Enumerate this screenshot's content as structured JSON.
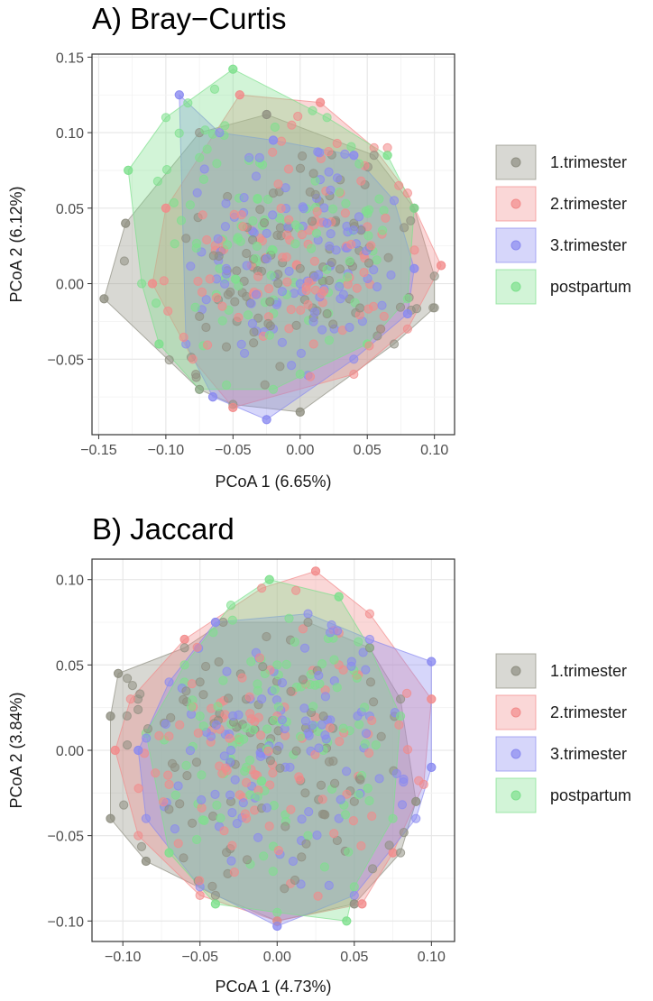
{
  "colors": {
    "1.trimester": "#8f8f82",
    "2.trimester": "#f28b8b",
    "3.trimester": "#8a8af0",
    "postpartum": "#7de08d"
  },
  "chart_data": [
    {
      "type": "scatter",
      "title": "A) Bray−Curtis",
      "xlabel": "PCoA 1 (6.65%)",
      "ylabel": "PCoA 2 (6.12%)",
      "xlim": [
        -0.155,
        0.115
      ],
      "ylim": [
        -0.1,
        0.152
      ],
      "xticks": [
        -0.15,
        -0.1,
        -0.05,
        0.0,
        0.05,
        0.1
      ],
      "xtick_labels": [
        "−0.15",
        "−0.10",
        "−0.05",
        "0.00",
        "0.05",
        "0.10"
      ],
      "yticks": [
        -0.05,
        0.0,
        0.05,
        0.1,
        0.15
      ],
      "ytick_labels": [
        "−0.05",
        "0.00",
        "0.05",
        "0.10",
        "0.15"
      ],
      "grid": true,
      "legend_position": "right",
      "series": [
        {
          "name": "1.trimester",
          "hull": [
            [
              -0.146,
              -0.01
            ],
            [
              -0.13,
              0.04
            ],
            [
              -0.075,
              0.1
            ],
            [
              -0.025,
              0.112
            ],
            [
              0.055,
              0.085
            ],
            [
              0.085,
              0.05
            ],
            [
              0.1,
              0.005
            ],
            [
              0.1,
              -0.016
            ],
            [
              0.07,
              -0.04
            ],
            [
              0.0,
              -0.085
            ],
            [
              -0.05,
              -0.08
            ],
            [
              -0.075,
              -0.07
            ]
          ],
          "points": [
            [
              -0.146,
              -0.01
            ],
            [
              -0.13,
              0.04
            ],
            [
              -0.085,
              0.03
            ],
            [
              -0.04,
              0.02
            ],
            [
              -0.02,
              0.06
            ],
            [
              0.0,
              0.01
            ],
            [
              0.02,
              -0.02
            ],
            [
              0.04,
              0.04
            ],
            [
              0.06,
              -0.03
            ],
            [
              0.099,
              -0.016
            ],
            [
              0.0,
              -0.085
            ],
            [
              -0.025,
              0.112
            ]
          ]
        },
        {
          "name": "2.trimester",
          "hull": [
            [
              -0.11,
              0.0
            ],
            [
              -0.1,
              0.05
            ],
            [
              -0.045,
              0.125
            ],
            [
              0.015,
              0.12
            ],
            [
              0.055,
              0.09
            ],
            [
              0.08,
              0.06
            ],
            [
              0.105,
              0.012
            ],
            [
              0.08,
              -0.03
            ],
            [
              0.04,
              -0.06
            ],
            [
              -0.05,
              -0.082
            ],
            [
              -0.08,
              -0.05
            ]
          ],
          "points": [
            [
              -0.11,
              0.0
            ],
            [
              -0.1,
              0.05
            ],
            [
              -0.045,
              0.125
            ],
            [
              0.015,
              0.12
            ],
            [
              0.065,
              0.09
            ],
            [
              0.105,
              0.012
            ],
            [
              0.06,
              -0.03
            ],
            [
              -0.05,
              -0.082
            ],
            [
              -0.03,
              0.03
            ],
            [
              0.01,
              -0.04
            ],
            [
              0.03,
              0.06
            ]
          ]
        },
        {
          "name": "3.trimester",
          "hull": [
            [
              -0.09,
              0.125
            ],
            [
              -0.06,
              0.1
            ],
            [
              -0.02,
              0.095
            ],
            [
              0.04,
              0.085
            ],
            [
              0.07,
              0.055
            ],
            [
              0.085,
              0.01
            ],
            [
              0.08,
              -0.02
            ],
            [
              0.04,
              -0.05
            ],
            [
              -0.025,
              -0.09
            ],
            [
              -0.065,
              -0.075
            ],
            [
              -0.085,
              -0.04
            ]
          ],
          "points": [
            [
              -0.09,
              0.125
            ],
            [
              -0.02,
              0.095
            ],
            [
              0.04,
              0.085
            ],
            [
              0.085,
              0.01
            ],
            [
              0.08,
              -0.02
            ],
            [
              -0.025,
              -0.09
            ],
            [
              -0.065,
              -0.075
            ],
            [
              0.0,
              0.0
            ],
            [
              0.03,
              -0.01
            ],
            [
              -0.02,
              -0.03
            ],
            [
              0.02,
              0.04
            ]
          ]
        },
        {
          "name": "postpartum",
          "hull": [
            [
              -0.128,
              0.075
            ],
            [
              -0.1,
              0.11
            ],
            [
              -0.05,
              0.142
            ],
            [
              0.02,
              0.11
            ],
            [
              0.065,
              0.085
            ],
            [
              0.085,
              0.05
            ],
            [
              0.08,
              -0.01
            ],
            [
              0.05,
              -0.04
            ],
            [
              -0.02,
              -0.07
            ],
            [
              -0.075,
              -0.07
            ],
            [
              -0.105,
              -0.04
            ],
            [
              -0.118,
              0.0
            ]
          ],
          "points": [
            [
              -0.128,
              0.075
            ],
            [
              -0.05,
              0.142
            ],
            [
              0.065,
              0.085
            ],
            [
              0.085,
              0.05
            ],
            [
              -0.105,
              -0.04
            ],
            [
              -0.06,
              0.01
            ],
            [
              -0.01,
              0.04
            ],
            [
              0.03,
              0.0
            ],
            [
              0.05,
              -0.04
            ],
            [
              0.0,
              -0.06
            ],
            [
              -0.03,
              0.08
            ]
          ]
        }
      ]
    },
    {
      "type": "scatter",
      "title": "B) Jaccard",
      "xlabel": "PCoA 1 (4.73%)",
      "ylabel": "PCoA 2 (3.84%)",
      "xlim": [
        -0.12,
        0.115
      ],
      "ylim": [
        -0.112,
        0.112
      ],
      "xticks": [
        -0.1,
        -0.05,
        0.0,
        0.05,
        0.1
      ],
      "xtick_labels": [
        "−0.10",
        "−0.05",
        "0.00",
        "0.05",
        "0.10"
      ],
      "yticks": [
        -0.1,
        -0.05,
        0.0,
        0.05,
        0.1
      ],
      "ytick_labels": [
        "−0.10",
        "−0.05",
        "0.00",
        "0.05",
        "0.10"
      ],
      "grid": true,
      "legend_position": "right",
      "series": [
        {
          "name": "1.trimester",
          "hull": [
            [
              -0.108,
              0.02
            ],
            [
              -0.103,
              0.045
            ],
            [
              -0.06,
              0.06
            ],
            [
              -0.035,
              0.075
            ],
            [
              0.02,
              0.075
            ],
            [
              0.06,
              0.06
            ],
            [
              0.08,
              0.03
            ],
            [
              0.09,
              -0.03
            ],
            [
              0.08,
              -0.06
            ],
            [
              0.05,
              -0.09
            ],
            [
              0.0,
              -0.1
            ],
            [
              -0.04,
              -0.085
            ],
            [
              -0.085,
              -0.065
            ],
            [
              -0.108,
              -0.04
            ]
          ],
          "points": [
            [
              -0.108,
              0.02
            ],
            [
              -0.103,
              0.045
            ],
            [
              -0.108,
              -0.04
            ],
            [
              -0.085,
              -0.065
            ],
            [
              0.0,
              0.0
            ],
            [
              0.03,
              0.02
            ],
            [
              -0.03,
              -0.03
            ],
            [
              0.05,
              -0.03
            ],
            [
              -0.05,
              0.04
            ],
            [
              0.09,
              -0.03
            ],
            [
              0.05,
              -0.09
            ]
          ]
        },
        {
          "name": "2.trimester",
          "hull": [
            [
              -0.105,
              0.0
            ],
            [
              -0.095,
              0.03
            ],
            [
              -0.06,
              0.065
            ],
            [
              -0.01,
              0.095
            ],
            [
              0.025,
              0.105
            ],
            [
              0.06,
              0.08
            ],
            [
              0.1,
              0.03
            ],
            [
              0.095,
              -0.02
            ],
            [
              0.075,
              -0.06
            ],
            [
              0.055,
              -0.09
            ],
            [
              0.0,
              -0.1
            ],
            [
              -0.05,
              -0.085
            ],
            [
              -0.09,
              -0.05
            ]
          ],
          "points": [
            [
              -0.105,
              0.0
            ],
            [
              -0.06,
              0.065
            ],
            [
              0.025,
              0.105
            ],
            [
              0.1,
              0.03
            ],
            [
              0.075,
              -0.06
            ],
            [
              0.055,
              -0.09
            ],
            [
              0.0,
              0.02
            ],
            [
              -0.02,
              -0.04
            ],
            [
              0.04,
              0.05
            ],
            [
              -0.07,
              -0.02
            ]
          ]
        },
        {
          "name": "3.trimester",
          "hull": [
            [
              -0.09,
              0.0
            ],
            [
              -0.07,
              0.04
            ],
            [
              -0.04,
              0.075
            ],
            [
              0.02,
              0.08
            ],
            [
              0.06,
              0.065
            ],
            [
              0.1,
              0.052
            ],
            [
              0.1,
              -0.01
            ],
            [
              0.09,
              -0.04
            ],
            [
              0.05,
              -0.085
            ],
            [
              0.0,
              -0.103
            ],
            [
              -0.05,
              -0.08
            ],
            [
              -0.085,
              -0.04
            ]
          ],
          "points": [
            [
              -0.09,
              0.0
            ],
            [
              -0.04,
              0.075
            ],
            [
              0.1,
              0.052
            ],
            [
              0.1,
              -0.01
            ],
            [
              0.0,
              -0.103
            ],
            [
              0.02,
              0.01
            ],
            [
              -0.03,
              0.0
            ],
            [
              0.04,
              -0.04
            ],
            [
              -0.01,
              0.03
            ],
            [
              0.06,
              0.02
            ]
          ]
        },
        {
          "name": "postpartum",
          "hull": [
            [
              -0.085,
              0.01
            ],
            [
              -0.06,
              0.05
            ],
            [
              -0.03,
              0.085
            ],
            [
              -0.005,
              0.1
            ],
            [
              0.04,
              0.09
            ],
            [
              0.06,
              0.06
            ],
            [
              0.08,
              0.02
            ],
            [
              0.075,
              -0.04
            ],
            [
              0.05,
              -0.08
            ],
            [
              0.045,
              -0.1
            ],
            [
              0.0,
              -0.095
            ],
            [
              -0.04,
              -0.09
            ],
            [
              -0.07,
              -0.06
            ]
          ],
          "points": [
            [
              -0.005,
              0.1
            ],
            [
              0.04,
              0.09
            ],
            [
              0.045,
              -0.1
            ],
            [
              -0.04,
              -0.09
            ],
            [
              -0.07,
              -0.06
            ],
            [
              0.0,
              0.05
            ],
            [
              -0.02,
              -0.01
            ],
            [
              0.03,
              0.0
            ],
            [
              -0.05,
              0.02
            ],
            [
              0.02,
              -0.05
            ]
          ]
        }
      ]
    }
  ]
}
